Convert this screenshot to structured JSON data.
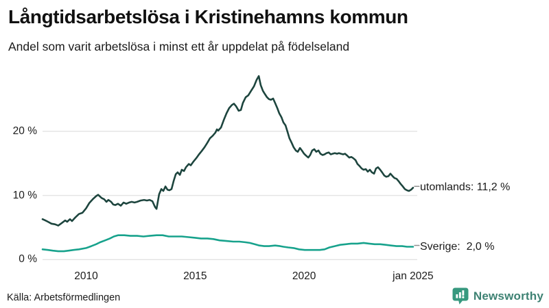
{
  "header": {
    "title": "Långtidsarbetslösa i Kristinehamns kommun",
    "subtitle": "Andel som varit arbetslösa i minst ett år uppdelat på födelseland"
  },
  "footer": {
    "source": "Källa: Arbetsförmedlingen",
    "brand": "Newsworthy"
  },
  "colors": {
    "utomlands_line": "#1d453e",
    "sverige_line": "#17a28c",
    "grid": "#e3e3e3",
    "end_tick": "#8f8f8f",
    "text": "#1a1a1a",
    "brand_icon": "#37997f",
    "brand_text": "#3e8273"
  },
  "chart_data": {
    "type": "line",
    "title": "Långtidsarbetslösa i Kristinehamns kommun",
    "subtitle": "Andel som varit arbetslösa i minst ett år uppdelat på födelseland",
    "source": "Källa: Arbetsförmedlingen",
    "unit": "%",
    "grid": "horizontal",
    "legend_position": "line-end-labels",
    "x_axis": {
      "range": [
        2008,
        2025.2
      ],
      "ticks": [
        {
          "t": 2010,
          "label": "2010"
        },
        {
          "t": 2015,
          "label": "2015"
        },
        {
          "t": 2020,
          "label": "2020"
        },
        {
          "t": 2025,
          "label": "jan 2025"
        }
      ]
    },
    "y_axis": {
      "range": [
        0,
        30
      ],
      "ticks": [
        {
          "v": 0,
          "label": "0 %"
        },
        {
          "v": 10,
          "label": "10 %"
        },
        {
          "v": 20,
          "label": "20 %"
        }
      ]
    },
    "series": [
      {
        "name": "utomlands",
        "end_label": "utomlands: 11,2 %",
        "end_value": 11.2,
        "color": "#1d453e",
        "points": [
          [
            2008.0,
            6.3
          ],
          [
            2008.13,
            6.1
          ],
          [
            2008.25,
            5.9
          ],
          [
            2008.41,
            5.6
          ],
          [
            2008.57,
            5.5
          ],
          [
            2008.72,
            5.3
          ],
          [
            2008.88,
            5.7
          ],
          [
            2009.04,
            6.1
          ],
          [
            2009.13,
            5.9
          ],
          [
            2009.26,
            6.3
          ],
          [
            2009.35,
            6.0
          ],
          [
            2009.51,
            6.6
          ],
          [
            2009.67,
            7.1
          ],
          [
            2009.83,
            7.3
          ],
          [
            2010.0,
            8.0
          ],
          [
            2010.14,
            8.8
          ],
          [
            2010.3,
            9.4
          ],
          [
            2010.46,
            9.9
          ],
          [
            2010.55,
            10.1
          ],
          [
            2010.71,
            9.6
          ],
          [
            2010.83,
            9.4
          ],
          [
            2010.93,
            9.0
          ],
          [
            2011.02,
            9.3
          ],
          [
            2011.15,
            9.0
          ],
          [
            2011.24,
            8.6
          ],
          [
            2011.34,
            8.5
          ],
          [
            2011.46,
            8.7
          ],
          [
            2011.59,
            8.4
          ],
          [
            2011.72,
            8.9
          ],
          [
            2011.84,
            8.7
          ],
          [
            2011.97,
            8.9
          ],
          [
            2012.09,
            9.0
          ],
          [
            2012.22,
            8.9
          ],
          [
            2012.34,
            9.0
          ],
          [
            2012.5,
            9.2
          ],
          [
            2012.66,
            9.3
          ],
          [
            2012.79,
            9.2
          ],
          [
            2012.91,
            9.3
          ],
          [
            2013.04,
            9.1
          ],
          [
            2013.16,
            8.2
          ],
          [
            2013.23,
            7.9
          ],
          [
            2013.35,
            10.2
          ],
          [
            2013.45,
            11.0
          ],
          [
            2013.54,
            10.7
          ],
          [
            2013.64,
            11.4
          ],
          [
            2013.73,
            10.9
          ],
          [
            2013.82,
            10.8
          ],
          [
            2013.92,
            11.0
          ],
          [
            2014.01,
            12.2
          ],
          [
            2014.11,
            13.3
          ],
          [
            2014.2,
            13.6
          ],
          [
            2014.3,
            13.2
          ],
          [
            2014.39,
            14.0
          ],
          [
            2014.49,
            13.8
          ],
          [
            2014.58,
            14.4
          ],
          [
            2014.71,
            14.9
          ],
          [
            2014.8,
            14.7
          ],
          [
            2014.93,
            15.3
          ],
          [
            2015.05,
            15.8
          ],
          [
            2015.18,
            16.4
          ],
          [
            2015.3,
            16.9
          ],
          [
            2015.43,
            17.5
          ],
          [
            2015.56,
            18.2
          ],
          [
            2015.68,
            18.9
          ],
          [
            2015.81,
            19.3
          ],
          [
            2015.93,
            19.8
          ],
          [
            2016.0,
            20.3
          ],
          [
            2016.06,
            20.1
          ],
          [
            2016.19,
            20.6
          ],
          [
            2016.31,
            21.7
          ],
          [
            2016.44,
            22.8
          ],
          [
            2016.56,
            23.6
          ],
          [
            2016.69,
            24.1
          ],
          [
            2016.78,
            24.3
          ],
          [
            2016.88,
            23.9
          ],
          [
            2017.0,
            23.2
          ],
          [
            2017.1,
            23.3
          ],
          [
            2017.19,
            24.4
          ],
          [
            2017.32,
            25.3
          ],
          [
            2017.44,
            25.6
          ],
          [
            2017.57,
            26.3
          ],
          [
            2017.7,
            27.0
          ],
          [
            2017.82,
            28.0
          ],
          [
            2017.92,
            28.6
          ],
          [
            2018.01,
            27.2
          ],
          [
            2018.11,
            26.3
          ],
          [
            2018.2,
            25.8
          ],
          [
            2018.3,
            25.3
          ],
          [
            2018.39,
            25.0
          ],
          [
            2018.48,
            24.9
          ],
          [
            2018.58,
            25.1
          ],
          [
            2018.67,
            24.4
          ],
          [
            2018.77,
            23.6
          ],
          [
            2018.86,
            22.8
          ],
          [
            2018.96,
            22.2
          ],
          [
            2019.05,
            21.4
          ],
          [
            2019.15,
            20.9
          ],
          [
            2019.24,
            19.9
          ],
          [
            2019.33,
            18.9
          ],
          [
            2019.43,
            18.2
          ],
          [
            2019.52,
            17.5
          ],
          [
            2019.62,
            17.0
          ],
          [
            2019.71,
            16.8
          ],
          [
            2019.81,
            17.4
          ],
          [
            2019.9,
            17.0
          ],
          [
            2020.0,
            16.5
          ],
          [
            2020.09,
            16.2
          ],
          [
            2020.19,
            15.9
          ],
          [
            2020.28,
            16.3
          ],
          [
            2020.37,
            17.0
          ],
          [
            2020.47,
            17.2
          ],
          [
            2020.56,
            16.8
          ],
          [
            2020.66,
            17.0
          ],
          [
            2020.75,
            16.5
          ],
          [
            2020.85,
            16.3
          ],
          [
            2020.94,
            16.4
          ],
          [
            2021.03,
            16.6
          ],
          [
            2021.13,
            16.7
          ],
          [
            2021.22,
            16.4
          ],
          [
            2021.31,
            16.5
          ],
          [
            2021.41,
            16.6
          ],
          [
            2021.51,
            16.5
          ],
          [
            2021.6,
            16.6
          ],
          [
            2021.69,
            16.5
          ],
          [
            2021.79,
            16.4
          ],
          [
            2021.88,
            16.5
          ],
          [
            2021.98,
            16.2
          ],
          [
            2022.07,
            15.9
          ],
          [
            2022.17,
            16.0
          ],
          [
            2022.26,
            15.8
          ],
          [
            2022.36,
            15.5
          ],
          [
            2022.45,
            14.9
          ],
          [
            2022.54,
            14.6
          ],
          [
            2022.64,
            14.2
          ],
          [
            2022.73,
            14.0
          ],
          [
            2022.83,
            14.1
          ],
          [
            2022.92,
            13.7
          ],
          [
            2023.02,
            14.0
          ],
          [
            2023.11,
            13.6
          ],
          [
            2023.21,
            13.4
          ],
          [
            2023.3,
            14.2
          ],
          [
            2023.39,
            14.4
          ],
          [
            2023.49,
            14.0
          ],
          [
            2023.58,
            13.6
          ],
          [
            2023.68,
            13.1
          ],
          [
            2023.77,
            12.9
          ],
          [
            2023.87,
            13.0
          ],
          [
            2023.96,
            13.4
          ],
          [
            2024.06,
            13.0
          ],
          [
            2024.15,
            12.7
          ],
          [
            2024.24,
            12.6
          ],
          [
            2024.34,
            12.2
          ],
          [
            2024.43,
            11.8
          ],
          [
            2024.53,
            11.4
          ],
          [
            2024.62,
            11.0
          ],
          [
            2024.72,
            10.8
          ],
          [
            2024.81,
            10.7
          ],
          [
            2024.91,
            10.9
          ],
          [
            2025.0,
            11.2
          ]
        ]
      },
      {
        "name": "Sverige",
        "end_label": "Sverige:  2,0 %",
        "end_value": 2.0,
        "color": "#17a28c",
        "points": [
          [
            2008.0,
            1.6
          ],
          [
            2008.25,
            1.5
          ],
          [
            2008.47,
            1.4
          ],
          [
            2008.72,
            1.3
          ],
          [
            2008.98,
            1.3
          ],
          [
            2009.2,
            1.4
          ],
          [
            2009.42,
            1.5
          ],
          [
            2009.67,
            1.6
          ],
          [
            2010.0,
            1.8
          ],
          [
            2010.24,
            2.1
          ],
          [
            2010.46,
            2.4
          ],
          [
            2010.64,
            2.7
          ],
          [
            2010.87,
            3.0
          ],
          [
            2011.09,
            3.3
          ],
          [
            2011.27,
            3.6
          ],
          [
            2011.46,
            3.8
          ],
          [
            2011.75,
            3.8
          ],
          [
            2012.03,
            3.7
          ],
          [
            2012.34,
            3.7
          ],
          [
            2012.63,
            3.6
          ],
          [
            2012.91,
            3.7
          ],
          [
            2013.23,
            3.8
          ],
          [
            2013.51,
            3.8
          ],
          [
            2013.79,
            3.6
          ],
          [
            2014.11,
            3.6
          ],
          [
            2014.39,
            3.6
          ],
          [
            2014.71,
            3.5
          ],
          [
            2015.0,
            3.4
          ],
          [
            2015.27,
            3.3
          ],
          [
            2015.56,
            3.3
          ],
          [
            2015.84,
            3.2
          ],
          [
            2016.12,
            3.0
          ],
          [
            2016.44,
            2.9
          ],
          [
            2016.75,
            2.8
          ],
          [
            2017.03,
            2.8
          ],
          [
            2017.32,
            2.7
          ],
          [
            2017.51,
            2.6
          ],
          [
            2017.73,
            2.4
          ],
          [
            2017.95,
            2.2
          ],
          [
            2018.17,
            2.1
          ],
          [
            2018.39,
            2.1
          ],
          [
            2018.67,
            2.2
          ],
          [
            2018.9,
            2.1
          ],
          [
            2019.05,
            2.0
          ],
          [
            2019.27,
            1.9
          ],
          [
            2019.52,
            1.8
          ],
          [
            2019.77,
            1.6
          ],
          [
            2020.03,
            1.5
          ],
          [
            2020.28,
            1.5
          ],
          [
            2020.53,
            1.5
          ],
          [
            2020.72,
            1.5
          ],
          [
            2020.94,
            1.6
          ],
          [
            2021.16,
            1.9
          ],
          [
            2021.41,
            2.1
          ],
          [
            2021.66,
            2.3
          ],
          [
            2021.92,
            2.4
          ],
          [
            2022.17,
            2.5
          ],
          [
            2022.45,
            2.5
          ],
          [
            2022.73,
            2.6
          ],
          [
            2022.98,
            2.5
          ],
          [
            2023.24,
            2.4
          ],
          [
            2023.49,
            2.4
          ],
          [
            2023.74,
            2.3
          ],
          [
            2023.99,
            2.2
          ],
          [
            2024.24,
            2.1
          ],
          [
            2024.5,
            2.1
          ],
          [
            2024.72,
            2.0
          ],
          [
            2024.87,
            2.0
          ],
          [
            2025.0,
            2.0
          ]
        ]
      }
    ]
  }
}
